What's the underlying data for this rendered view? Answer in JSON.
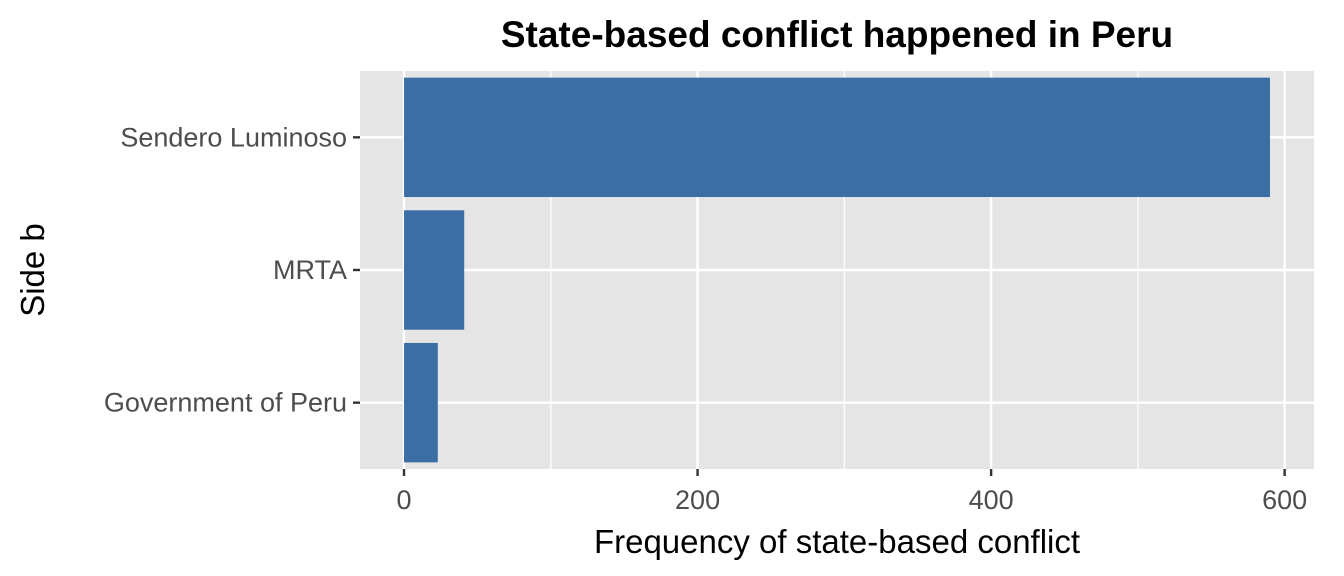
{
  "chart_data": {
    "type": "bar",
    "orientation": "horizontal",
    "title": "State-based conflict happened in Peru",
    "xlabel": "Frequency of state-based conflict",
    "ylabel": "Side b",
    "categories": [
      "Sendero Luminoso",
      "MRTA",
      "Government of Peru"
    ],
    "values": [
      590,
      41,
      23
    ],
    "xlim": [
      -30,
      620
    ],
    "x_ticks": [
      0,
      200,
      400,
      600
    ],
    "x_minor_ticks": [
      100,
      300,
      500
    ],
    "grid": true,
    "legend": "none",
    "colors": {
      "bar": "#3a6ea5",
      "panel": "#e5e5e5",
      "grid": "#ffffff"
    }
  }
}
